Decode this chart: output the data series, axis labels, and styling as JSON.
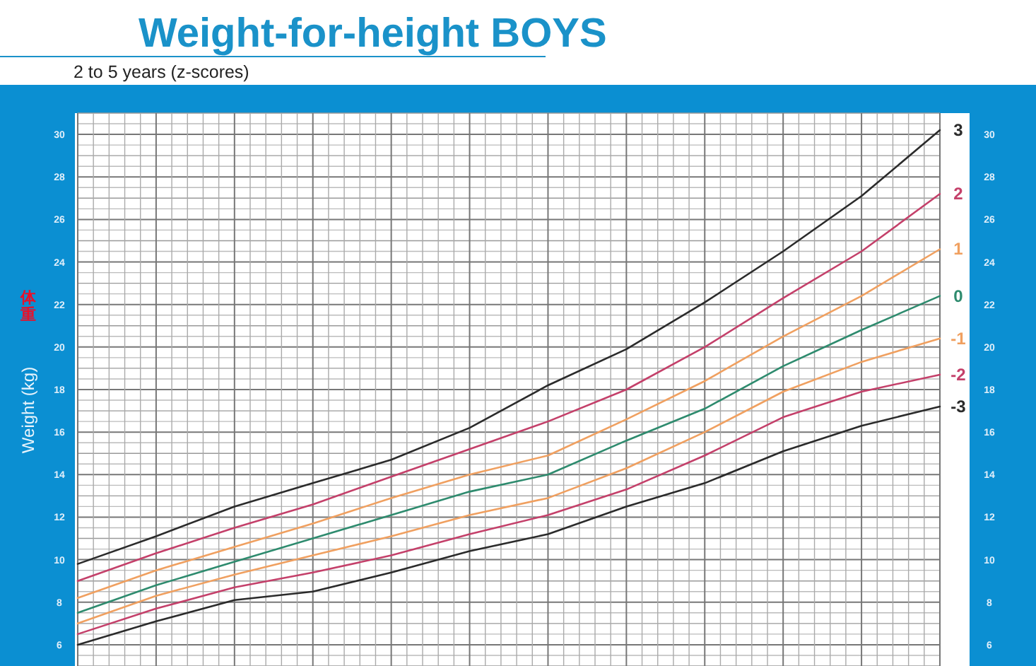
{
  "chart_data": {
    "type": "line",
    "title": "Weight-for-height BOYS",
    "subtitle": "2 to 5 years (z-scores)",
    "ylabel": "Weight (kg)",
    "annotations": [
      "体重"
    ],
    "categories": [
      null,
      null,
      null,
      null,
      null,
      null,
      null,
      null,
      null,
      null,
      null,
      null
    ],
    "ylim": [
      5,
      31
    ],
    "yticks": [
      6,
      8,
      10,
      12,
      14,
      16,
      18,
      20,
      22,
      24,
      26,
      28,
      30
    ],
    "y2lim": [
      5,
      31
    ],
    "y2ticks": [
      6,
      8,
      10,
      12,
      14,
      16,
      18,
      20,
      22,
      24,
      26,
      28,
      30
    ],
    "tick_labels": "y",
    "grid": true,
    "marker": "none",
    "line_style": "solid",
    "series": [
      {
        "name": "3",
        "color": "#2b2b2b",
        "values": [
          9.8,
          11.1,
          12.5,
          13.6,
          14.7,
          16.2,
          18.2,
          19.9,
          22.1,
          24.5,
          27.1,
          30.2
        ]
      },
      {
        "name": "2",
        "color": "#c4406a",
        "values": [
          9.0,
          10.3,
          11.5,
          12.6,
          13.9,
          15.2,
          16.5,
          18.0,
          20.0,
          22.3,
          24.5,
          27.2
        ]
      },
      {
        "name": "1",
        "color": "#f0a060",
        "values": [
          8.2,
          9.5,
          10.6,
          11.7,
          12.9,
          14.0,
          14.9,
          16.6,
          18.4,
          20.5,
          22.4,
          24.6
        ]
      },
      {
        "name": "0",
        "color": "#2e8b6e",
        "values": [
          7.5,
          8.8,
          9.9,
          11.0,
          12.1,
          13.2,
          14.0,
          15.6,
          17.1,
          19.1,
          20.8,
          22.4
        ]
      },
      {
        "name": "-1",
        "color": "#f0a060",
        "values": [
          7.0,
          8.3,
          9.3,
          10.2,
          11.1,
          12.1,
          12.9,
          14.3,
          16.0,
          17.9,
          19.3,
          20.4
        ]
      },
      {
        "name": "-2",
        "color": "#c4406a",
        "values": [
          6.5,
          7.7,
          8.7,
          9.4,
          10.2,
          11.2,
          12.1,
          13.3,
          14.9,
          16.7,
          17.9,
          18.7
        ]
      },
      {
        "name": "-3",
        "color": "#2b2b2b",
        "values": [
          6.0,
          7.1,
          8.1,
          8.5,
          9.4,
          10.4,
          11.2,
          12.5,
          13.6,
          15.1,
          16.3,
          17.2
        ]
      }
    ]
  }
}
